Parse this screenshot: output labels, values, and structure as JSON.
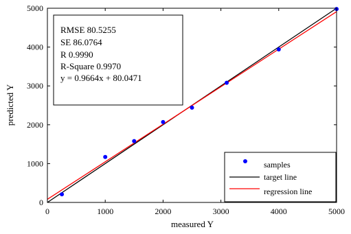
{
  "chart_data": {
    "type": "scatter",
    "xlabel": "measured Y",
    "ylabel": "predicted Y",
    "xlim": [
      0,
      5000
    ],
    "ylim": [
      0,
      5000
    ],
    "xticks": [
      0,
      1000,
      2000,
      3000,
      4000,
      5000
    ],
    "yticks": [
      0,
      1000,
      2000,
      3000,
      4000,
      5000
    ],
    "grid": false,
    "legend_position": "bottom-right",
    "stats": [
      "RMSE 80.5255",
      "SE 86.0764",
      "R 0.9990",
      "R-Square 0.9970",
      "y = 0.9664x + 80.0471"
    ],
    "series": [
      {
        "name": "samples",
        "kind": "points",
        "color": "#0000ff",
        "x": [
          250,
          1000,
          1500,
          2000,
          2500,
          3100,
          4000,
          5000
        ],
        "y": [
          210,
          1170,
          1580,
          2070,
          2440,
          3080,
          3940,
          4980
        ]
      },
      {
        "name": "target line",
        "kind": "line",
        "color": "#000000",
        "x": [
          0,
          5000
        ],
        "y": [
          0,
          5000
        ]
      },
      {
        "name": "regression line",
        "kind": "line",
        "color": "#ff0000",
        "x": [
          0,
          5000
        ],
        "y": [
          80.0471,
          4912.0471
        ]
      }
    ]
  }
}
